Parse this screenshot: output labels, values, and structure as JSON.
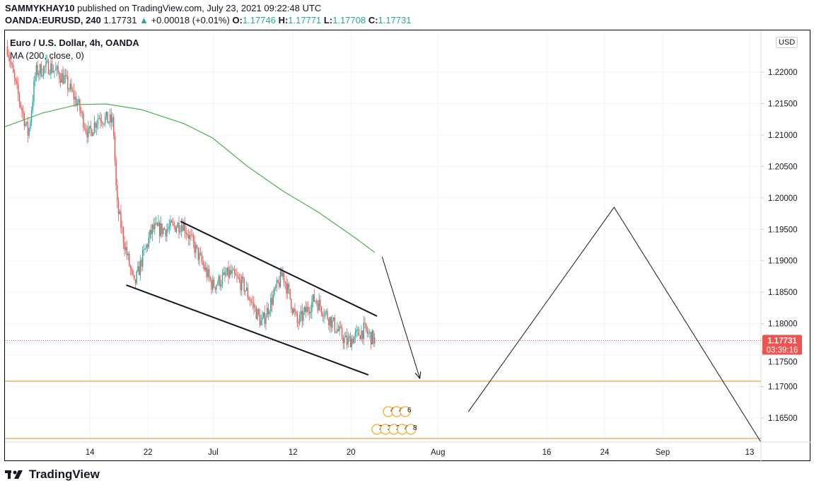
{
  "header": {
    "author": "SAMMYKHAY10",
    "published": " published on TradingView.com, July 23, 2021 09:22:48 UTC",
    "symbol": "OANDA:EURUSD, 240",
    "last": "1.17731",
    "change": "+0.00018 (+0.01%)",
    "o_label": "O:",
    "o": "1.17746",
    "h_label": "H:",
    "h": "1.17771",
    "l_label": "L:",
    "l": "1.17708",
    "c_label": "C:",
    "c": "1.17731"
  },
  "legend": {
    "title": "Euro / U.S. Dollar, 4h, OANDA",
    "indicator": "MA (200, close, 0)"
  },
  "currency": "USD",
  "logo": "TradingView",
  "colors": {
    "up": "#26a69a",
    "down": "#ef5350",
    "ma": "#4caf50",
    "hline": "#e8a33d",
    "price_tag": "#ef5350"
  },
  "chart_data": {
    "type": "candlestick",
    "x_unit": "days since Jun 1 2021",
    "ylim": [
      1.1612,
      1.2258
    ],
    "y_ticks": [
      "1.22000",
      "1.21500",
      "1.21000",
      "1.20500",
      "1.20000",
      "1.19500",
      "1.19000",
      "1.18500",
      "1.18000",
      "1.17500",
      "1.17000",
      "1.16500"
    ],
    "x_ticks": [
      {
        "t": 13,
        "label": "14"
      },
      {
        "t": 21,
        "label": "22"
      },
      {
        "t": 30,
        "label": "Jul"
      },
      {
        "t": 41,
        "label": "12"
      },
      {
        "t": 49,
        "label": "20"
      },
      {
        "t": 61,
        "label": "Aug"
      },
      {
        "t": 76,
        "label": "16"
      },
      {
        "t": 84,
        "label": "24"
      },
      {
        "t": 92,
        "label": "Sep"
      },
      {
        "t": 104,
        "label": "13"
      }
    ],
    "price_path": [
      [
        1.6,
        1.224
      ],
      [
        2.5,
        1.219
      ],
      [
        4.5,
        1.21
      ],
      [
        5.5,
        1.22
      ],
      [
        7.4,
        1.221
      ],
      [
        9.4,
        1.219
      ],
      [
        11.3,
        1.215
      ],
      [
        12.8,
        1.21
      ],
      [
        14.2,
        1.213
      ],
      [
        16.2,
        1.212
      ],
      [
        16.7,
        1.199
      ],
      [
        17.7,
        1.193
      ],
      [
        19.1,
        1.186
      ],
      [
        20.1,
        1.19
      ],
      [
        21.6,
        1.195
      ],
      [
        23.5,
        1.195
      ],
      [
        25.8,
        1.196
      ],
      [
        27.9,
        1.191
      ],
      [
        29.9,
        1.186
      ],
      [
        32.3,
        1.188
      ],
      [
        34.2,
        1.186
      ],
      [
        36.7,
        1.18
      ],
      [
        39.6,
        1.188
      ],
      [
        41.6,
        1.18
      ],
      [
        44,
        1.184
      ],
      [
        45.9,
        1.181
      ],
      [
        48.4,
        1.177
      ],
      [
        50.8,
        1.179
      ],
      [
        52.3,
        1.1773
      ]
    ],
    "ma200": [
      [
        1.07,
        1.21123
      ],
      [
        6.4,
        1.21348
      ],
      [
        11.3,
        1.21483
      ],
      [
        15.2,
        1.21494
      ],
      [
        20.1,
        1.21404
      ],
      [
        26.0,
        1.21179
      ],
      [
        29.9,
        1.20954
      ],
      [
        34.7,
        1.20504
      ],
      [
        39.6,
        1.2011
      ],
      [
        44.5,
        1.19773
      ],
      [
        49.4,
        1.19379
      ],
      [
        52.3,
        1.19131
      ]
    ],
    "current_price": {
      "value": "1.17731",
      "countdown": "03:39:16"
    },
    "horizontal_lines": [
      1.17084,
      1.16173
    ],
    "drawings": [
      {
        "name": "channel-upper-line",
        "points": [
          [
            25.5,
            1.19626
          ],
          [
            52.6,
            1.18119
          ]
        ],
        "arrow": false,
        "width": 2
      },
      {
        "name": "channel-lower-line",
        "points": [
          [
            18.0,
            1.18614
          ],
          [
            51.4,
            1.17185
          ]
        ],
        "arrow": false,
        "width": 2
      },
      {
        "name": "projection-arrow-down",
        "points": [
          [
            53.3,
            1.19064
          ],
          [
            58.5,
            1.17129
          ]
        ],
        "arrow": true,
        "width": 1
      },
      {
        "name": "projection-zigzag",
        "points": [
          [
            65.2,
            1.166
          ],
          [
            85.3,
            1.19851
          ],
          [
            105.5,
            1.16127
          ]
        ],
        "arrow": false,
        "width": 1
      }
    ],
    "events": {
      "row1": [
        "4",
        "4",
        "6"
      ],
      "row2": [
        "3",
        "2",
        "2",
        "4",
        "8"
      ]
    }
  }
}
